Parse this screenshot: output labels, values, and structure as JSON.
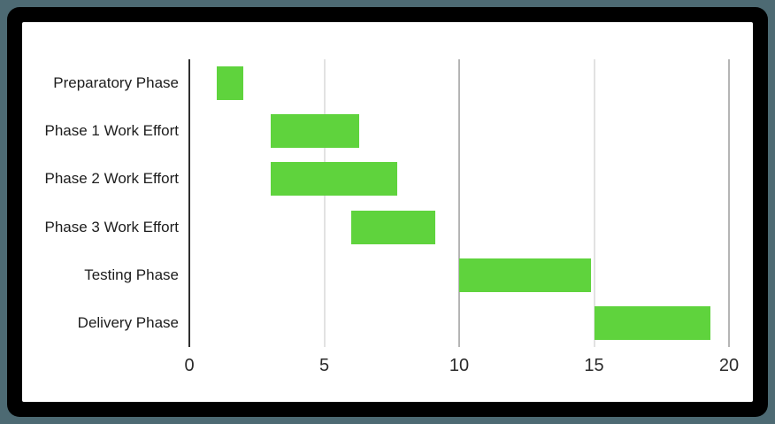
{
  "window": {
    "outer_background": "#4d6a73",
    "frame_color": "#000000",
    "panel_background": "#ffffff"
  },
  "chart_data": {
    "type": "bar",
    "subtype": "gantt",
    "orientation": "horizontal",
    "title": "",
    "xlabel": "",
    "ylabel": "",
    "xlim": [
      0,
      20
    ],
    "xticks": [
      "0",
      "5",
      "10",
      "15",
      "20"
    ],
    "xtick_values": [
      0,
      5,
      10,
      15,
      20
    ],
    "grid": true,
    "legend": false,
    "categories": [
      "Preparatory Phase",
      "Phase 1 Work Effort",
      "Phase 2 Work Effort",
      "Phase 3 Work Effort",
      "Testing Phase",
      "Delivery Phase"
    ],
    "bars": [
      {
        "label": "Preparatory Phase",
        "start": 1,
        "end": 2
      },
      {
        "label": "Phase 1 Work Effort",
        "start": 3,
        "end": 6.3
      },
      {
        "label": "Phase 2 Work Effort",
        "start": 3,
        "end": 7.7
      },
      {
        "label": "Phase 3 Work Effort",
        "start": 6,
        "end": 9.1
      },
      {
        "label": "Testing Phase",
        "start": 10,
        "end": 14.9
      },
      {
        "label": "Delivery Phase",
        "start": 15,
        "end": 19.3
      }
    ],
    "colors": {
      "bar": "#5fd33d",
      "axis_line": "#2f2f2f",
      "gridline_minor": "#e2e2e2",
      "gridline_major": "#b5b5b5",
      "tick_label": "#2b2b2b",
      "category_label": "#1d1d1d"
    }
  }
}
